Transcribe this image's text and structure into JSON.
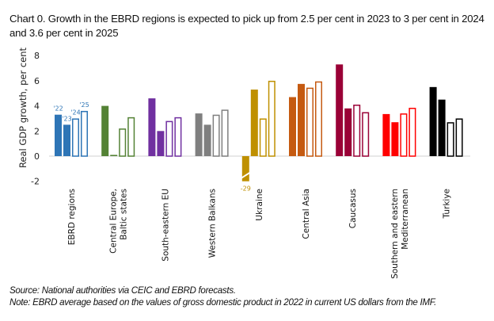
{
  "chart_data": {
    "type": "bar",
    "title": "Chart 0. Growth in the EBRD regions is expected to pick up from 2.5 per cent in 2023 to 3 per cent in 2024 and 3.6 per cent in 2025",
    "xlabel": "",
    "ylabel": "Real GDP growth, per cent",
    "ylim": [
      -2,
      8
    ],
    "yticks": [
      "8",
      "6",
      "4",
      "2",
      "0",
      "-2"
    ],
    "grid": false,
    "legend": "none (year labels '22, '23, '24, '25 annotated on first group)",
    "year_labels": [
      "'22",
      "'23",
      "'24",
      "'25"
    ],
    "bar_style_note": "2022 and 2023 filled (actual); 2024 and 2025 hollow outline (forecast)",
    "truncated_label": "-29",
    "categories": [
      {
        "label": "EBRD regions",
        "lines": [
          "EBRD regions"
        ],
        "color": "#2E75B6",
        "values": [
          3.3,
          2.5,
          3.0,
          3.6
        ]
      },
      {
        "label": "Central Europe, Baltic states",
        "lines": [
          "Central Europe,",
          "Baltic states"
        ],
        "color": "#548235",
        "values": [
          4.0,
          0.1,
          2.2,
          3.1
        ]
      },
      {
        "label": "South-eastern EU",
        "lines": [
          "South-eastern EU"
        ],
        "color": "#7030A0",
        "values": [
          4.6,
          2.0,
          2.8,
          3.1
        ]
      },
      {
        "label": "Western Balkans",
        "lines": [
          "Western Balkans"
        ],
        "color": "#7F7F7F",
        "values": [
          3.4,
          2.5,
          3.3,
          3.7
        ]
      },
      {
        "label": "Ukraine",
        "lines": [
          "Ukraine"
        ],
        "color": "#BF9000",
        "values": [
          -29.1,
          5.3,
          3.0,
          6.0
        ]
      },
      {
        "label": "Central Asia",
        "lines": [
          "Central Asia"
        ],
        "color": "#C55A11",
        "values": [
          4.7,
          5.75,
          5.45,
          5.95
        ]
      },
      {
        "label": "Caucasus",
        "lines": [
          "Caucasus"
        ],
        "color": "#9A0036",
        "values": [
          7.3,
          3.8,
          4.1,
          3.5
        ]
      },
      {
        "label": "Southern and eastern Mediterranean",
        "lines": [
          "Southern and eastern",
          "Mediterranean"
        ],
        "color": "#FF0000",
        "values": [
          3.35,
          2.7,
          3.4,
          3.85
        ]
      },
      {
        "label": "Turkiye",
        "lines": [
          "Turkiye"
        ],
        "color": "#000000",
        "values": [
          5.5,
          4.5,
          2.7,
          3.0
        ]
      }
    ],
    "series": [
      {
        "name": "2022",
        "style": "filled"
      },
      {
        "name": "2023",
        "style": "filled"
      },
      {
        "name": "2024",
        "style": "outline"
      },
      {
        "name": "2025",
        "style": "outline"
      }
    ]
  },
  "notes": {
    "source": "Source: National authorities via CEIC and EBRD forecasts.",
    "note": "Note: EBRD average based on the values of gross domestic product in 2022 in current US dollars from the IMF."
  }
}
